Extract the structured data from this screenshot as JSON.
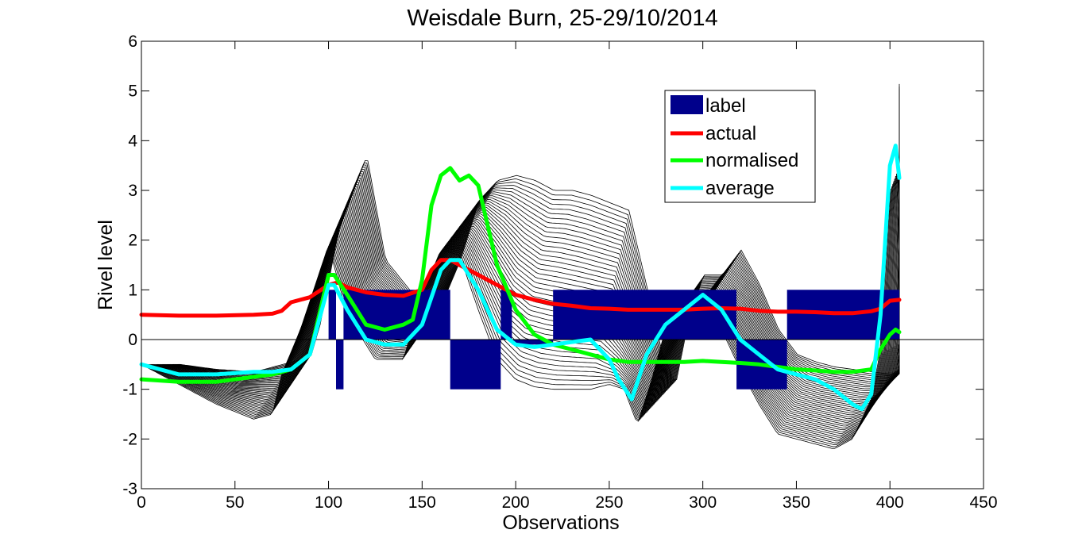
{
  "chart_data": {
    "type": "line",
    "title": "Weisdale Burn, 25-29/10/2014",
    "xlabel": "Observations",
    "ylabel": "Rivel level",
    "xlim": [
      0,
      450
    ],
    "ylim": [
      -3,
      6
    ],
    "xticks": [
      0,
      50,
      100,
      150,
      200,
      250,
      300,
      350,
      400,
      450
    ],
    "yticks": [
      -3,
      -2,
      -1,
      0,
      1,
      2,
      3,
      4,
      5,
      6
    ],
    "xtick_labels": [
      "0",
      "50",
      "100",
      "150",
      "200",
      "250",
      "300",
      "350",
      "400",
      "450"
    ],
    "ytick_labels": [
      "-3",
      "-2",
      "-1",
      "0",
      "1",
      "2",
      "3",
      "4",
      "5",
      "6"
    ],
    "grid": false,
    "legend_position": "top-right",
    "legend": [
      "label",
      "actual",
      "normalised",
      "average"
    ],
    "colors": {
      "label": "#00008b",
      "actual": "#ff0000",
      "normalised": "#00ff00",
      "average": "#00ffff",
      "ensemble": "#000000"
    },
    "label_bars": [
      {
        "x0": 100,
        "x1": 104,
        "value": 1
      },
      {
        "x0": 104,
        "x1": 108,
        "value": -1
      },
      {
        "x0": 108,
        "x1": 165,
        "value": 1
      },
      {
        "x0": 165,
        "x1": 187,
        "value": -1
      },
      {
        "x0": 187,
        "x1": 192,
        "value": -1
      },
      {
        "x0": 192,
        "x1": 198,
        "value": 1
      },
      {
        "x0": 198,
        "x1": 220,
        "value": -0.1
      },
      {
        "x0": 220,
        "x1": 318,
        "value": 1
      },
      {
        "x0": 318,
        "x1": 345,
        "value": -1
      },
      {
        "x0": 345,
        "x1": 405,
        "value": 1
      }
    ],
    "series": [
      {
        "name": "actual",
        "x": [
          0,
          20,
          40,
          60,
          70,
          75,
          80,
          90,
          100,
          105,
          110,
          120,
          130,
          140,
          150,
          155,
          160,
          165,
          170,
          180,
          190,
          200,
          210,
          220,
          230,
          240,
          250,
          260,
          270,
          280,
          290,
          300,
          310,
          320,
          330,
          340,
          350,
          360,
          370,
          380,
          390,
          395,
          400,
          405
        ],
        "y": [
          0.5,
          0.48,
          0.48,
          0.5,
          0.52,
          0.58,
          0.75,
          0.85,
          1.1,
          1.15,
          1.05,
          0.95,
          0.9,
          0.88,
          1.0,
          1.4,
          1.6,
          1.6,
          1.5,
          1.3,
          1.1,
          0.9,
          0.8,
          0.72,
          0.68,
          0.63,
          0.62,
          0.6,
          0.6,
          0.6,
          0.6,
          0.62,
          0.63,
          0.62,
          0.58,
          0.56,
          0.56,
          0.55,
          0.53,
          0.53,
          0.57,
          0.62,
          0.78,
          0.8
        ]
      },
      {
        "name": "normalised",
        "x": [
          0,
          20,
          40,
          60,
          70,
          80,
          90,
          100,
          103,
          110,
          120,
          130,
          140,
          145,
          150,
          155,
          160,
          165,
          170,
          175,
          180,
          185,
          190,
          200,
          210,
          220,
          230,
          240,
          250,
          260,
          270,
          280,
          290,
          300,
          310,
          320,
          330,
          340,
          350,
          360,
          370,
          380,
          390,
          395,
          400,
          403,
          405
        ],
        "y": [
          -0.8,
          -0.85,
          -0.85,
          -0.75,
          -0.7,
          -0.6,
          -0.3,
          1.3,
          1.3,
          0.9,
          0.3,
          0.2,
          0.3,
          0.4,
          1.2,
          2.7,
          3.3,
          3.45,
          3.2,
          3.3,
          3.1,
          2.3,
          1.5,
          0.6,
          0.1,
          -0.1,
          -0.2,
          -0.3,
          -0.4,
          -0.45,
          -0.45,
          -0.45,
          -0.45,
          -0.43,
          -0.45,
          -0.47,
          -0.5,
          -0.55,
          -0.6,
          -0.62,
          -0.65,
          -0.65,
          -0.6,
          -0.2,
          0.1,
          0.2,
          0.15
        ]
      },
      {
        "name": "average",
        "x": [
          0,
          20,
          40,
          60,
          70,
          80,
          90,
          100,
          103,
          110,
          120,
          130,
          140,
          150,
          160,
          165,
          170,
          180,
          190,
          200,
          210,
          220,
          230,
          240,
          250,
          255,
          262,
          270,
          280,
          290,
          300,
          310,
          320,
          330,
          340,
          350,
          360,
          370,
          380,
          385,
          390,
          395,
          400,
          403,
          405
        ],
        "y": [
          -0.5,
          -0.7,
          -0.7,
          -0.65,
          -0.65,
          -0.6,
          -0.3,
          1.1,
          1.1,
          0.6,
          0.0,
          -0.1,
          -0.1,
          0.3,
          1.4,
          1.6,
          1.6,
          1.0,
          0.2,
          -0.1,
          -0.15,
          -0.1,
          -0.05,
          0.0,
          -0.4,
          -0.8,
          -1.2,
          -0.3,
          0.3,
          0.6,
          0.9,
          0.6,
          0.0,
          -0.3,
          -0.6,
          -0.7,
          -0.8,
          -1.0,
          -1.3,
          -1.4,
          -1.1,
          0.5,
          3.5,
          3.9,
          3.25
        ]
      }
    ],
    "ensemble": {
      "name": "",
      "count": 42,
      "x": [
        0,
        20,
        40,
        60,
        70,
        75,
        85,
        100,
        110,
        125,
        140,
        150,
        160,
        170,
        180,
        190,
        200,
        210,
        220,
        240,
        250,
        258,
        265,
        272,
        280,
        290,
        300,
        310,
        320,
        330,
        340,
        350,
        360,
        370,
        380,
        390,
        395,
        400,
        405
      ],
      "y_bottom": [
        -0.5,
        -0.9,
        -1.3,
        -1.6,
        -1.5,
        -0.7,
        0.2,
        1.9,
        0.5,
        -0.4,
        -0.4,
        0.9,
        1.8,
        1.7,
        0.6,
        -0.4,
        -0.8,
        -0.95,
        -1.0,
        -1.0,
        -0.9,
        -1.0,
        -1.7,
        -0.9,
        0.2,
        0.3,
        0.6,
        0.2,
        -0.6,
        -1.3,
        -1.9,
        -2.0,
        -2.1,
        -2.2,
        -2.0,
        -1.2,
        -0.2,
        3.0,
        3.2
      ],
      "y_top": [
        -0.5,
        -0.6,
        -0.65,
        -0.45,
        -0.35,
        0.3,
        2.2,
        3.7,
        1.6,
        0.9,
        0.7,
        1.6,
        2.8,
        3.2,
        3.3,
        3.2,
        3.0,
        3.0,
        2.9,
        2.6,
        1.0,
        -0.3,
        -0.9,
        0.4,
        1.3,
        1.3,
        1.8,
        1.1,
        0.2,
        -0.3,
        -0.45,
        -0.55,
        -0.6,
        -0.65,
        -0.7,
        -0.5,
        0.2,
        5.3,
        3.7
      ],
      "x_shift": 0.5
    }
  }
}
